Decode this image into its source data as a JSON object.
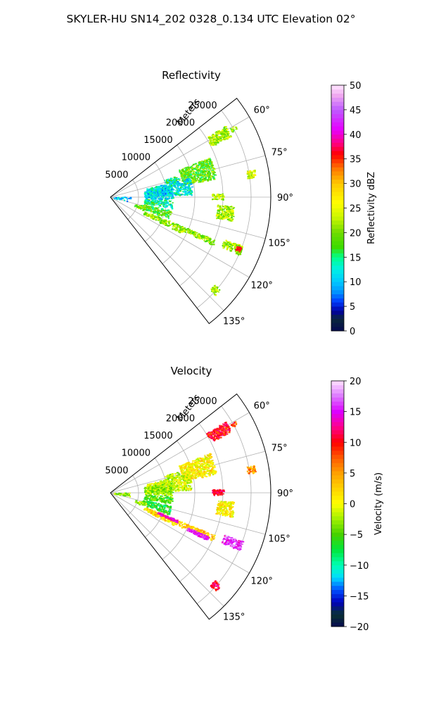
{
  "figure": {
    "title": "SKYLER-HU  SN14_202  0328_0.134 UTC Elevation 02°"
  },
  "chart_data": [
    {
      "type": "heatmap",
      "projection": "polar-sector",
      "title": "Reflectivity",
      "radial_label": "Meters",
      "radial_ticks": [
        5000,
        10000,
        15000,
        20000,
        25000
      ],
      "radial_tick_labels": [
        "5000",
        "10000",
        "15000",
        "20000",
        "25000"
      ],
      "rlim": [
        0,
        28500
      ],
      "angular_ticks": [
        60,
        75,
        90,
        105,
        120,
        135
      ],
      "angular_tick_labels": [
        "60°",
        "75°",
        "90°",
        "105°",
        "120°",
        "135°"
      ],
      "theta_range_deg": [
        52,
        142
      ],
      "grid": true,
      "colorbar": {
        "label": "Reflectivity dBZ",
        "range": [
          0,
          50
        ],
        "ticks": [
          0,
          5,
          10,
          15,
          20,
          25,
          30,
          35,
          40,
          45,
          50
        ],
        "tick_labels": [
          "0",
          "5",
          "10",
          "15",
          "20",
          "25",
          "30",
          "35",
          "40",
          "45",
          "50"
        ]
      },
      "echoes": [
        {
          "theta": [
            58,
            63
          ],
          "r": [
            20000,
            24000
          ],
          "value": 22
        },
        {
          "theta": [
            60,
            61.5
          ],
          "r": [
            24500,
            25500
          ],
          "value": 20
        },
        {
          "theta": [
            68,
            80
          ],
          "r": [
            13000,
            19000
          ],
          "value": 19
        },
        {
          "theta": [
            72,
            76
          ],
          "r": [
            10000,
            12500
          ],
          "value": 14
        },
        {
          "theta": [
            76,
            88
          ],
          "r": [
            6500,
            14500
          ],
          "value": 12
        },
        {
          "theta": [
            80,
            92
          ],
          "r": [
            6000,
            11000
          ],
          "value": 11
        },
        {
          "theta": [
            93,
            100
          ],
          "r": [
            6000,
            11000
          ],
          "value": 14
        },
        {
          "theta": [
            102,
            110
          ],
          "r": [
            5500,
            11000
          ],
          "value": 18
        },
        {
          "theta": [
            88,
            102
          ],
          "r": [
            300,
            3500
          ],
          "value": 11
        },
        {
          "theta": [
            106,
            112
          ],
          "r": [
            4500,
            6500
          ],
          "value": 20
        },
        {
          "theta": [
            112,
            117
          ],
          "r": [
            6500,
            14000
          ],
          "value": 21
        },
        {
          "theta": [
            112,
            115
          ],
          "r": [
            14000,
            20000
          ],
          "value": 21
        },
        {
          "theta": [
            88,
            91
          ],
          "r": [
            18000,
            20000
          ],
          "value": 22
        },
        {
          "theta": [
            79,
            82
          ],
          "r": [
            24500,
            26000
          ],
          "value": 24
        },
        {
          "theta": [
            94,
            101
          ],
          "r": [
            19000,
            22000
          ],
          "value": 22
        },
        {
          "theta": [
            110,
            114
          ],
          "r": [
            21500,
            25000
          ],
          "value": 22
        },
        {
          "theta": [
            130,
            133
          ],
          "r": [
            24000,
            25500
          ],
          "value": 22
        }
      ],
      "hot_spots": [
        {
          "theta": [
            111,
            113
          ],
          "r": [
            24000,
            24800
          ],
          "value": 36
        }
      ]
    },
    {
      "type": "heatmap",
      "projection": "polar-sector",
      "title": "Velocity",
      "radial_label": "Meters",
      "radial_ticks": [
        5000,
        10000,
        15000,
        20000,
        25000
      ],
      "radial_tick_labels": [
        "5000",
        "10000",
        "15000",
        "20000",
        "25000"
      ],
      "rlim": [
        0,
        28500
      ],
      "angular_ticks": [
        60,
        75,
        90,
        105,
        120,
        135
      ],
      "angular_tick_labels": [
        "60°",
        "75°",
        "90°",
        "105°",
        "120°",
        "135°"
      ],
      "theta_range_deg": [
        52,
        142
      ],
      "grid": true,
      "colorbar": {
        "label": "Velocity (m/s)",
        "range": [
          -20,
          20
        ],
        "ticks": [
          -20,
          -15,
          -10,
          -5,
          0,
          5,
          10,
          15,
          20
        ],
        "tick_labels": [
          "−20",
          "−15",
          "−10",
          "−5",
          "0",
          "5",
          "10",
          "15",
          "20"
        ]
      },
      "echoes": [
        {
          "theta": [
            58,
            63
          ],
          "r": [
            20000,
            24000
          ],
          "value": 10
        },
        {
          "theta": [
            60,
            61.5
          ],
          "r": [
            24500,
            25500
          ],
          "value": 9
        },
        {
          "theta": [
            68,
            80
          ],
          "r": [
            13000,
            19000
          ],
          "value": 1
        },
        {
          "theta": [
            72,
            76
          ],
          "r": [
            10000,
            12500
          ],
          "value": -2
        },
        {
          "theta": [
            76,
            88
          ],
          "r": [
            6500,
            14500
          ],
          "value": -1
        },
        {
          "theta": [
            80,
            92
          ],
          "r": [
            6000,
            11000
          ],
          "value": -3
        },
        {
          "theta": [
            93,
            100
          ],
          "r": [
            6000,
            11000
          ],
          "value": -5
        },
        {
          "theta": [
            102,
            110
          ],
          "r": [
            5500,
            11000
          ],
          "value": -7
        },
        {
          "theta": [
            88,
            102
          ],
          "r": [
            300,
            3500
          ],
          "value": -3
        },
        {
          "theta": [
            106,
            112
          ],
          "r": [
            4500,
            6500
          ],
          "value": -2
        },
        {
          "theta": [
            112,
            117
          ],
          "r": [
            6500,
            14000
          ],
          "value": 2
        },
        {
          "theta": [
            112,
            115
          ],
          "r": [
            14000,
            20000
          ],
          "value": 3
        },
        {
          "theta": [
            88,
            91
          ],
          "r": [
            18000,
            20000
          ],
          "value": 12
        },
        {
          "theta": [
            79,
            82
          ],
          "r": [
            24500,
            26000
          ],
          "value": 5
        },
        {
          "theta": [
            94,
            101
          ],
          "r": [
            19000,
            22000
          ],
          "value": 1
        },
        {
          "theta": [
            110,
            114
          ],
          "r": [
            21500,
            25000
          ],
          "value": 16
        },
        {
          "theta": [
            130,
            133
          ],
          "r": [
            24000,
            25500
          ],
          "value": 11
        }
      ],
      "hot_spots": [
        {
          "theta": [
            112,
            114
          ],
          "r": [
            9000,
            13000
          ],
          "value": 14
        },
        {
          "theta": [
            114,
            116
          ],
          "r": [
            15000,
            19000
          ],
          "value": 15
        },
        {
          "theta": [
            88,
            90
          ],
          "r": [
            18000,
            19500
          ],
          "value": 11
        }
      ]
    }
  ]
}
